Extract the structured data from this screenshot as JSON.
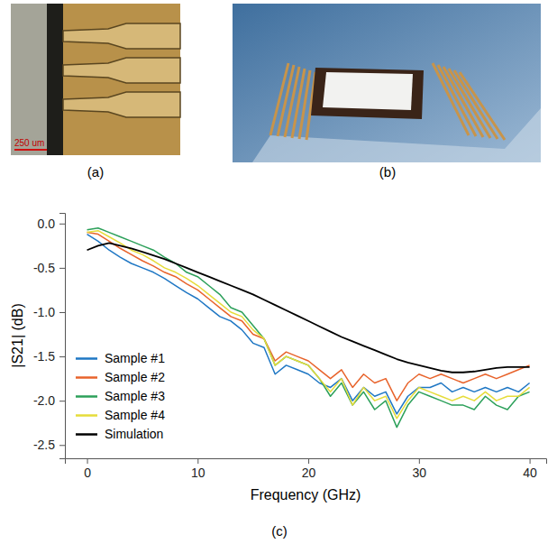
{
  "panels": [
    {
      "label": "(a)",
      "scale_bar": "250 um"
    },
    {
      "label": "(b)"
    },
    {
      "label": "(c)"
    }
  ],
  "chart_data": {
    "type": "line",
    "x_label": "Frequency (GHz)",
    "y_label": "|S21| (dB)",
    "x": [
      0,
      1,
      2,
      3,
      4,
      5,
      6,
      7,
      8,
      9,
      10,
      11,
      12,
      13,
      14,
      15,
      16,
      17,
      18,
      19,
      20,
      21,
      22,
      23,
      24,
      25,
      26,
      27,
      28,
      29,
      30,
      31,
      32,
      33,
      34,
      35,
      36,
      37,
      38,
      39,
      40
    ],
    "xlim": [
      -2,
      41.5
    ],
    "xticks": [
      0,
      10,
      20,
      30,
      40
    ],
    "ylim": [
      -2.65,
      0.12
    ],
    "yticks": [
      {
        "value": 0,
        "label": "0.0"
      },
      -0.5,
      {
        "value": -1,
        "label": "-1.0"
      },
      -1.5,
      {
        "value": -2,
        "label": "-2.0"
      },
      -2.5
    ],
    "grid": false,
    "legend": "lower left",
    "series": [
      {
        "name": "Sample #1",
        "color": "#1f77c4",
        "values": [
          -0.12,
          -0.2,
          -0.3,
          -0.38,
          -0.45,
          -0.5,
          -0.55,
          -0.62,
          -0.7,
          -0.78,
          -0.85,
          -0.95,
          -1.05,
          -1.1,
          -1.2,
          -1.35,
          -1.4,
          -1.7,
          -1.6,
          -1.65,
          -1.7,
          -1.8,
          -1.85,
          -1.75,
          -2.0,
          -1.85,
          -1.95,
          -1.9,
          -2.15,
          -1.95,
          -1.85,
          -1.85,
          -1.8,
          -1.9,
          -1.85,
          -1.9,
          -1.85,
          -1.9,
          -1.85,
          -1.9,
          -1.8
        ]
      },
      {
        "name": "Sample #2",
        "color": "#e8632b",
        "values": [
          -0.1,
          -0.12,
          -0.2,
          -0.28,
          -0.35,
          -0.42,
          -0.48,
          -0.55,
          -0.6,
          -0.68,
          -0.75,
          -0.85,
          -0.95,
          -1.05,
          -1.1,
          -1.25,
          -1.3,
          -1.55,
          -1.45,
          -1.5,
          -1.55,
          -1.65,
          -1.75,
          -1.65,
          -1.85,
          -1.7,
          -1.8,
          -1.75,
          -2.0,
          -1.8,
          -1.7,
          -1.75,
          -1.7,
          -1.75,
          -1.8,
          -1.75,
          -1.7,
          -1.75,
          -1.7,
          -1.65,
          -1.6
        ]
      },
      {
        "name": "Sample #3",
        "color": "#2ca05a",
        "values": [
          -0.07,
          -0.05,
          -0.1,
          -0.15,
          -0.2,
          -0.25,
          -0.3,
          -0.38,
          -0.45,
          -0.55,
          -0.6,
          -0.7,
          -0.8,
          -0.95,
          -1.0,
          -1.15,
          -1.3,
          -1.6,
          -1.5,
          -1.55,
          -1.6,
          -1.75,
          -1.95,
          -1.8,
          -2.05,
          -1.9,
          -2.1,
          -2.0,
          -2.3,
          -2.05,
          -1.9,
          -1.95,
          -2.0,
          -2.05,
          -2.05,
          -2.1,
          -1.95,
          -2.05,
          -2.1,
          -1.95,
          -1.9
        ]
      },
      {
        "name": "Sample #4",
        "color": "#e6dc3a",
        "values": [
          -0.1,
          -0.08,
          -0.15,
          -0.22,
          -0.3,
          -0.35,
          -0.42,
          -0.5,
          -0.55,
          -0.62,
          -0.7,
          -0.8,
          -0.9,
          -1.0,
          -1.05,
          -1.2,
          -1.3,
          -1.6,
          -1.5,
          -1.55,
          -1.6,
          -1.75,
          -1.9,
          -1.75,
          -2.05,
          -1.85,
          -2.0,
          -1.95,
          -2.2,
          -2.0,
          -1.85,
          -1.9,
          -1.95,
          -2.0,
          -1.95,
          -2.0,
          -1.9,
          -2.0,
          -1.95,
          -1.95,
          -1.85
        ]
      },
      {
        "name": "Simulation",
        "color": "#000000",
        "values": [
          -0.3,
          -0.25,
          -0.22,
          -0.25,
          -0.28,
          -0.32,
          -0.36,
          -0.4,
          -0.45,
          -0.5,
          -0.55,
          -0.6,
          -0.65,
          -0.7,
          -0.75,
          -0.8,
          -0.86,
          -0.92,
          -0.98,
          -1.04,
          -1.1,
          -1.16,
          -1.22,
          -1.28,
          -1.33,
          -1.38,
          -1.43,
          -1.48,
          -1.53,
          -1.57,
          -1.6,
          -1.63,
          -1.66,
          -1.68,
          -1.68,
          -1.67,
          -1.65,
          -1.63,
          -1.62,
          -1.62,
          -1.62
        ]
      }
    ]
  }
}
